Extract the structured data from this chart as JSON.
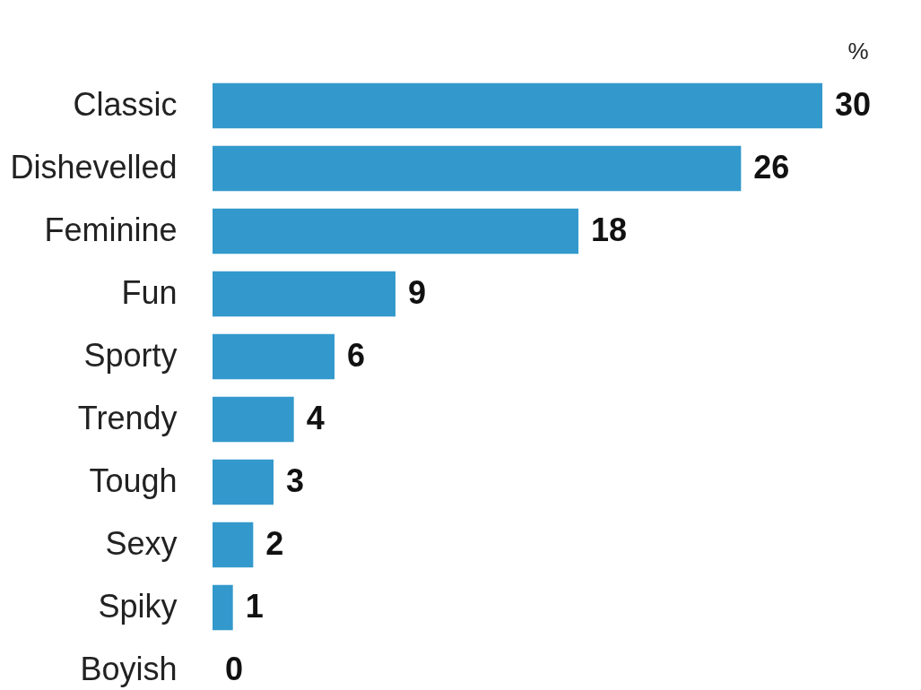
{
  "chart_data": {
    "type": "bar",
    "orientation": "horizontal",
    "categories": [
      "Classic",
      "Dishevelled",
      "Feminine",
      "Fun",
      "Sporty",
      "Trendy",
      "Tough",
      "Sexy",
      "Spiky",
      "Boyish"
    ],
    "values": [
      30,
      26,
      18,
      9,
      6,
      4,
      3,
      2,
      1,
      0
    ],
    "color": "#3399cc",
    "data_labels": true,
    "annotations": [
      "%"
    ]
  }
}
